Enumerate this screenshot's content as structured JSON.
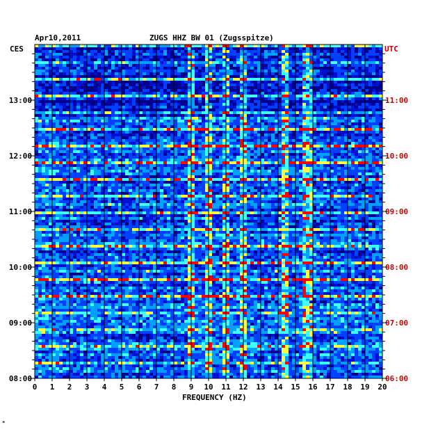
{
  "chart_data": {
    "type": "heatmap",
    "date": "Apr10,2011",
    "title": "ZUGS HHZ BW 01 (Zugsspitze)",
    "left_timezone": "CES",
    "right_timezone": "UTC",
    "xlabel": "FREQUENCY (HZ)",
    "xlim": [
      0,
      20
    ],
    "x_ticks": [
      "0",
      "1",
      "2",
      "3",
      "4",
      "5",
      "6",
      "7",
      "8",
      "9",
      "10",
      "11",
      "12",
      "13",
      "14",
      "15",
      "16",
      "17",
      "18",
      "19",
      "20"
    ],
    "left_ticks": [
      "13:00",
      "12:00",
      "11:00",
      "10:00",
      "09:00",
      "08:00"
    ],
    "right_ticks": [
      "11:00",
      "10:00",
      "09:00",
      "08:00",
      "07:00",
      "06:00"
    ],
    "time_range_local": [
      "08:00",
      "14:00"
    ],
    "colormap": [
      "#00008c",
      "#0010d0",
      "#0040ff",
      "#00a0ff",
      "#40ffff",
      "#ffff40",
      "#ff0000"
    ],
    "persistent_lines_hz": [
      9.0,
      10.0,
      11.0,
      12.0,
      14.4,
      15.7
    ],
    "bottom_mark": "*"
  },
  "colors": {
    "background": "#ffffff",
    "plot_base": "#00008c",
    "right_axis_text": "#cc0000",
    "left_axis_text": "#000000",
    "grid": "#000000"
  }
}
